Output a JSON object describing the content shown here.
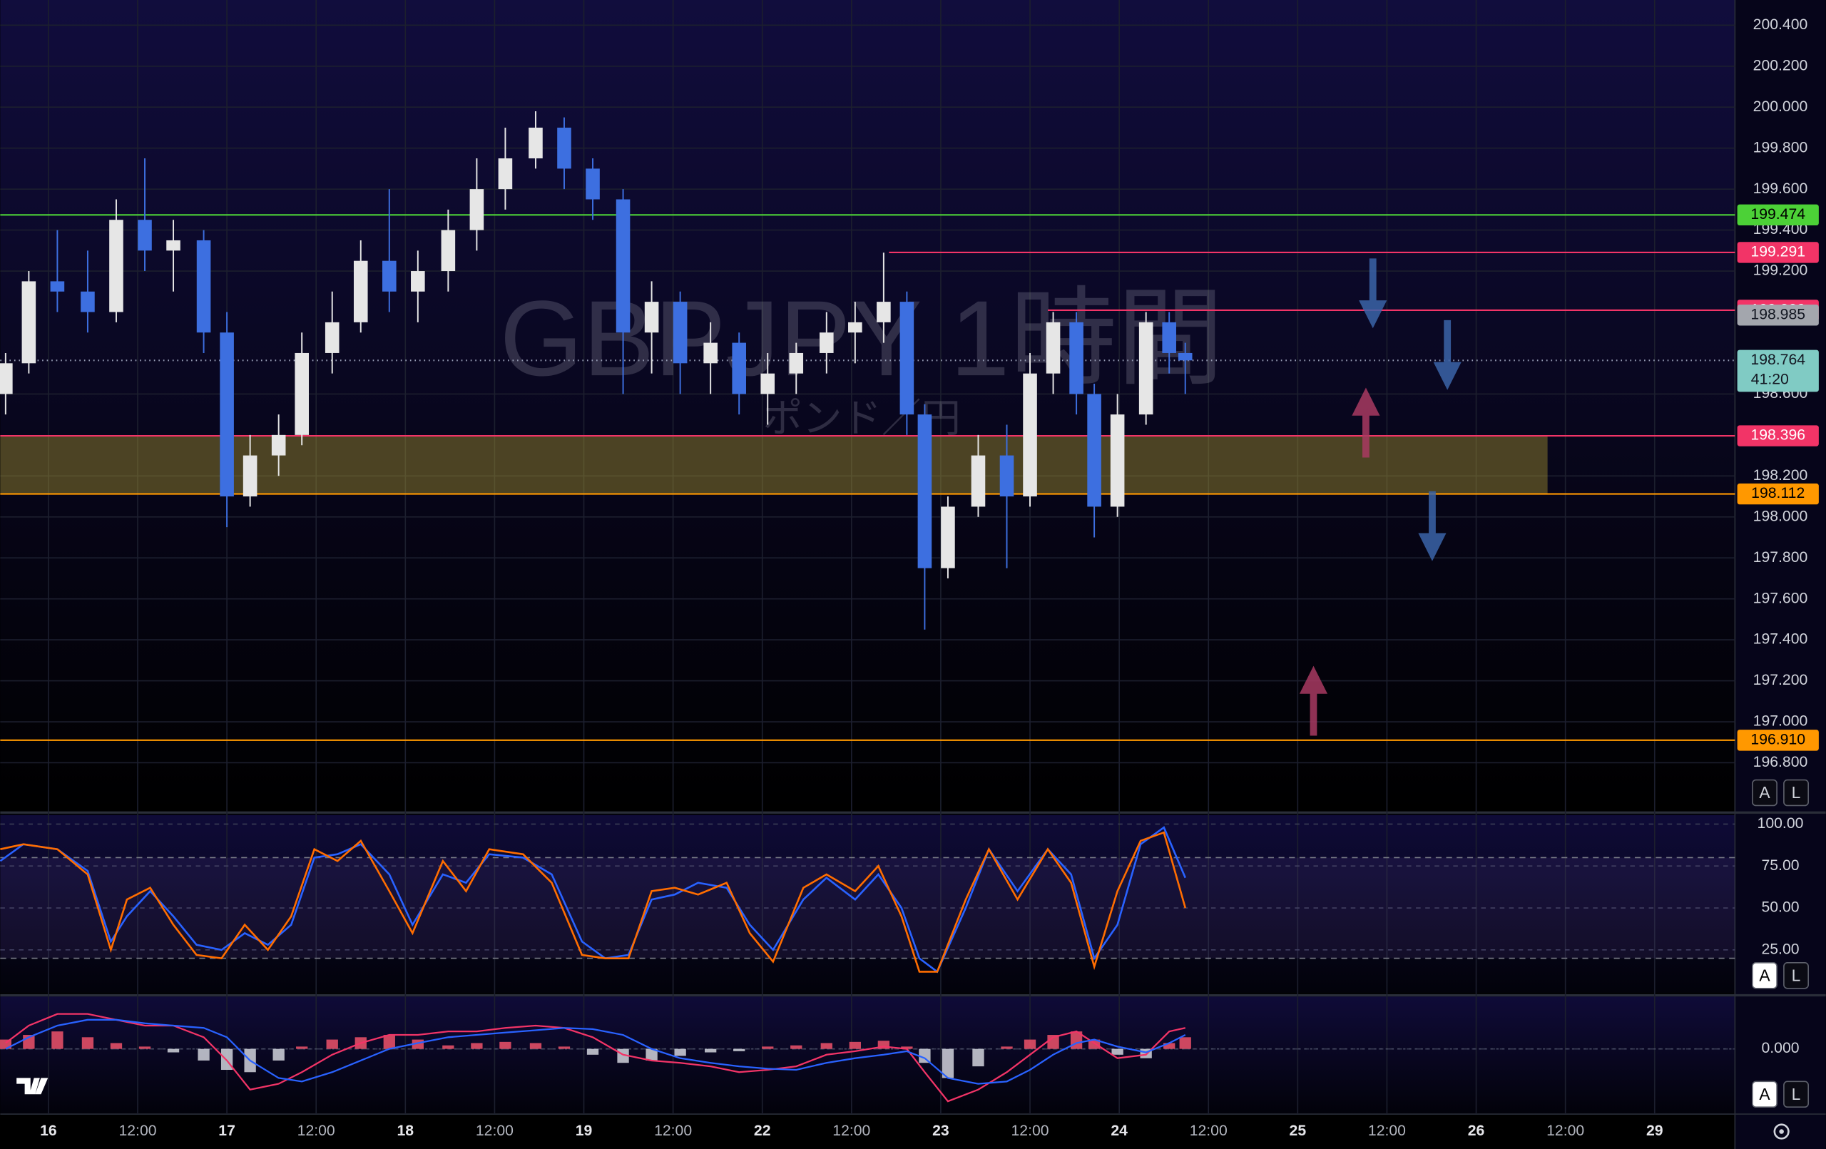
{
  "chart_data": [
    {
      "type": "candlestick",
      "title": "GBPJPY 1時間",
      "subtitle": "ポンド／円",
      "xlim": [
        -0.27,
        9.45
      ],
      "ylim": [
        196.574,
        200.523
      ],
      "xticks": [
        {
          "value": 0,
          "label": "16"
        },
        {
          "value": 0.5,
          "label": "12:00"
        },
        {
          "value": 1,
          "label": "17"
        },
        {
          "value": 1.5,
          "label": "12:00"
        },
        {
          "value": 2,
          "label": "18"
        },
        {
          "value": 2.5,
          "label": "12:00"
        },
        {
          "value": 3,
          "label": "19"
        },
        {
          "value": 3.5,
          "label": "12:00"
        },
        {
          "value": 4,
          "label": "22"
        },
        {
          "value": 4.5,
          "label": "12:00"
        },
        {
          "value": 5,
          "label": "23"
        },
        {
          "value": 5.5,
          "label": "12:00"
        },
        {
          "value": 6,
          "label": "24"
        },
        {
          "value": 6.5,
          "label": "12:00"
        },
        {
          "value": 7,
          "label": "25"
        },
        {
          "value": 7.5,
          "label": "12:00"
        },
        {
          "value": 8,
          "label": "26"
        },
        {
          "value": 8.5,
          "label": "12:00"
        },
        {
          "value": 9,
          "label": "29"
        }
      ],
      "yticks": [
        {
          "value": 200.4,
          "label": "200.400"
        },
        {
          "value": 200.2,
          "label": "200.200"
        },
        {
          "value": 200.0,
          "label": "200.000"
        },
        {
          "value": 199.8,
          "label": "199.800"
        },
        {
          "value": 199.6,
          "label": "199.600"
        },
        {
          "value": 199.4,
          "label": "199.400"
        },
        {
          "value": 199.2,
          "label": "199.200"
        },
        {
          "value": 198.6,
          "label": "198.600"
        },
        {
          "value": 198.2,
          "label": "198.200"
        },
        {
          "value": 198.0,
          "label": "198.000"
        },
        {
          "value": 197.8,
          "label": "197.800"
        },
        {
          "value": 197.6,
          "label": "197.600"
        },
        {
          "value": 197.4,
          "label": "197.400"
        },
        {
          "value": 197.2,
          "label": "197.200"
        },
        {
          "value": 197.0,
          "label": "197.000"
        },
        {
          "value": 196.8,
          "label": "196.800"
        }
      ],
      "grid": true,
      "up_color": "#e6e6e6",
      "down_color": "#3d6fe0",
      "x": [
        -0.24,
        -0.11,
        0.05,
        0.22,
        0.38,
        0.54,
        0.7,
        0.87,
        1.0,
        1.13,
        1.29,
        1.42,
        1.59,
        1.75,
        1.91,
        2.07,
        2.24,
        2.4,
        2.56,
        2.73,
        2.89,
        3.05,
        3.22,
        3.38,
        3.54,
        3.71,
        3.87,
        4.03,
        4.19,
        4.36,
        4.52,
        4.68,
        4.81,
        4.91,
        5.04,
        5.21,
        5.37,
        5.5,
        5.63,
        5.76,
        5.86,
        5.99,
        6.15,
        6.28,
        6.37
      ],
      "open": [
        198.6,
        198.75,
        199.15,
        199.1,
        199.0,
        199.45,
        199.3,
        199.35,
        198.9,
        198.1,
        198.3,
        198.4,
        198.8,
        198.95,
        199.25,
        199.1,
        199.2,
        199.4,
        199.6,
        199.75,
        199.9,
        199.7,
        199.55,
        198.9,
        199.05,
        198.75,
        198.85,
        198.6,
        198.7,
        198.8,
        198.9,
        198.95,
        199.05,
        198.5,
        197.75,
        198.05,
        198.3,
        198.1,
        198.7,
        198.95,
        198.6,
        198.05,
        198.5,
        198.95,
        198.8
      ],
      "high": [
        198.8,
        199.2,
        199.4,
        199.3,
        199.55,
        199.75,
        199.45,
        199.4,
        199.0,
        198.4,
        198.5,
        198.9,
        199.1,
        199.35,
        199.6,
        199.3,
        199.5,
        199.75,
        199.9,
        199.98,
        199.95,
        199.75,
        199.6,
        199.15,
        199.1,
        198.95,
        198.9,
        198.8,
        198.85,
        199.0,
        199.05,
        199.29,
        199.1,
        198.55,
        198.1,
        198.4,
        198.45,
        198.8,
        199.0,
        199.0,
        198.65,
        198.6,
        199.0,
        199.0,
        198.85
      ],
      "low": [
        198.5,
        198.7,
        199.0,
        198.9,
        198.95,
        199.2,
        199.1,
        198.8,
        197.95,
        198.05,
        198.2,
        198.35,
        198.7,
        198.9,
        199.0,
        198.95,
        199.1,
        199.3,
        199.5,
        199.7,
        199.6,
        199.45,
        198.6,
        198.7,
        198.6,
        198.6,
        198.5,
        198.45,
        198.6,
        198.7,
        198.75,
        198.85,
        198.4,
        197.45,
        197.7,
        198.0,
        197.75,
        198.05,
        198.6,
        198.5,
        197.9,
        198.0,
        198.45,
        198.7,
        198.6
      ],
      "close": [
        198.75,
        199.15,
        199.1,
        199.0,
        199.45,
        199.3,
        199.35,
        198.9,
        198.1,
        198.3,
        198.4,
        198.8,
        198.95,
        199.25,
        199.1,
        199.2,
        199.4,
        199.6,
        199.75,
        199.9,
        199.7,
        199.55,
        198.9,
        199.05,
        198.75,
        198.85,
        198.6,
        198.7,
        198.8,
        198.9,
        198.95,
        199.05,
        198.5,
        197.75,
        198.05,
        198.3,
        198.1,
        198.7,
        198.95,
        198.6,
        198.05,
        198.5,
        198.95,
        198.8,
        198.764
      ],
      "zone": {
        "from": 198.112,
        "to": 198.396,
        "x_end": 8.4,
        "color": "#b3a133"
      },
      "levels": [
        {
          "value": 199.474,
          "label": "199.474",
          "color": "#4cd137",
          "text_color": "#000000",
          "line": "solid"
        },
        {
          "value": 199.291,
          "label": "199.291",
          "color": "#f23467",
          "text_color": "#ffffff",
          "line": "solid",
          "x_start": 4.71
        },
        {
          "value": 199.009,
          "label": "199.009",
          "color": "#f23467",
          "text_color": "#ffffff",
          "line": "solid",
          "x_start": 5.6
        },
        {
          "value": 198.985,
          "label": "198.985",
          "color": "#a3a6ad",
          "text_color": "#131722",
          "line": "none"
        },
        {
          "value": 198.764,
          "label": "198.764",
          "color": "#80cbc4",
          "text_color": "#131722",
          "line": "dotted",
          "countdown": "41:20"
        },
        {
          "value": 198.396,
          "label": "198.396",
          "color": "#f23467",
          "text_color": "#ffffff",
          "line": "solid"
        },
        {
          "value": 198.112,
          "label": "198.112",
          "color": "#ff9800",
          "text_color": "#000000",
          "line": "solid"
        },
        {
          "value": 196.91,
          "label": "196.910",
          "color": "#ff9800",
          "text_color": "#000000",
          "line": "solid"
        }
      ]
    },
    {
      "type": "line",
      "xlim": [
        -0.27,
        9.45
      ],
      "ylim": [
        0,
        102
      ],
      "yticks": [
        {
          "value": 100,
          "label": "100.00"
        },
        {
          "value": 75,
          "label": "75.00"
        },
        {
          "value": 50,
          "label": "50.00"
        },
        {
          "value": 25,
          "label": "25.00"
        }
      ],
      "band": [
        20,
        80
      ],
      "band_color": "#7e57c2",
      "x": [
        -0.27,
        -0.14,
        0.05,
        0.22,
        0.35,
        0.44,
        0.57,
        0.7,
        0.83,
        0.97,
        1.1,
        1.23,
        1.36,
        1.49,
        1.62,
        1.75,
        1.91,
        2.04,
        2.21,
        2.34,
        2.47,
        2.66,
        2.82,
        2.99,
        3.12,
        3.25,
        3.38,
        3.51,
        3.64,
        3.8,
        3.93,
        4.06,
        4.23,
        4.36,
        4.52,
        4.65,
        4.78,
        4.88,
        4.98,
        5.14,
        5.27,
        5.43,
        5.6,
        5.73,
        5.86,
        5.99,
        6.12,
        6.25,
        6.37
      ],
      "series": [
        {
          "color": "#2962ff",
          "values": [
            78,
            88,
            85,
            72,
            30,
            45,
            60,
            45,
            28,
            25,
            35,
            28,
            40,
            80,
            82,
            88,
            70,
            40,
            70,
            65,
            82,
            80,
            70,
            30,
            20,
            22,
            55,
            58,
            65,
            62,
            40,
            25,
            55,
            68,
            55,
            70,
            50,
            20,
            12,
            50,
            85,
            60,
            85,
            70,
            20,
            40,
            88,
            98,
            68
          ]
        },
        {
          "color": "#ff6d00",
          "values": [
            85,
            88,
            85,
            70,
            25,
            55,
            62,
            40,
            22,
            20,
            40,
            25,
            45,
            85,
            78,
            90,
            60,
            35,
            78,
            60,
            85,
            82,
            65,
            22,
            20,
            20,
            60,
            62,
            58,
            65,
            35,
            18,
            62,
            70,
            60,
            75,
            45,
            12,
            12,
            55,
            85,
            55,
            85,
            65,
            15,
            60,
            90,
            95,
            50
          ]
        }
      ]
    },
    {
      "type": "combo",
      "xlim": [
        -0.27,
        9.45
      ],
      "ylim": [
        -0.54,
        0.44
      ],
      "yticks": [
        {
          "value": 0,
          "label": "0.000"
        }
      ],
      "positive_color": "#f0526b",
      "negative_color": "#d1d4dc",
      "x": [
        -0.24,
        -0.11,
        0.05,
        0.22,
        0.38,
        0.54,
        0.7,
        0.87,
        1.0,
        1.13,
        1.29,
        1.42,
        1.59,
        1.75,
        1.91,
        2.07,
        2.24,
        2.4,
        2.56,
        2.73,
        2.89,
        3.05,
        3.22,
        3.38,
        3.54,
        3.71,
        3.87,
        4.03,
        4.19,
        4.36,
        4.52,
        4.68,
        4.81,
        4.91,
        5.04,
        5.21,
        5.37,
        5.5,
        5.63,
        5.76,
        5.86,
        5.99,
        6.15,
        6.28,
        6.37
      ],
      "histogram": [
        0.08,
        0.12,
        0.15,
        0.1,
        0.05,
        0.02,
        -0.03,
        -0.1,
        -0.18,
        -0.2,
        -0.1,
        0.02,
        0.08,
        0.1,
        0.12,
        0.08,
        0.03,
        0.05,
        0.06,
        0.05,
        0.02,
        -0.05,
        -0.12,
        -0.1,
        -0.06,
        -0.03,
        -0.02,
        0.02,
        0.03,
        0.05,
        0.06,
        0.07,
        0.02,
        -0.12,
        -0.25,
        -0.15,
        0.02,
        0.08,
        0.12,
        0.15,
        0.08,
        -0.05,
        -0.08,
        0.05,
        0.1
      ],
      "series": [
        {
          "color": "#f23467",
          "values": [
            0.05,
            0.2,
            0.3,
            0.3,
            0.25,
            0.2,
            0.2,
            0.1,
            -0.1,
            -0.35,
            -0.3,
            -0.2,
            -0.05,
            0.05,
            0.12,
            0.12,
            0.15,
            0.15,
            0.18,
            0.2,
            0.18,
            0.1,
            -0.05,
            -0.1,
            -0.12,
            -0.15,
            -0.2,
            -0.18,
            -0.15,
            -0.05,
            -0.02,
            0.02,
            0.0,
            -0.2,
            -0.45,
            -0.35,
            -0.2,
            -0.05,
            0.1,
            0.15,
            0.05,
            -0.08,
            -0.05,
            0.15,
            0.18
          ]
        },
        {
          "color": "#2962ff",
          "values": [
            0.0,
            0.1,
            0.2,
            0.25,
            0.25,
            0.22,
            0.2,
            0.18,
            0.1,
            -0.1,
            -0.25,
            -0.28,
            -0.2,
            -0.1,
            0.0,
            0.05,
            0.1,
            0.12,
            0.14,
            0.16,
            0.18,
            0.17,
            0.12,
            0.0,
            -0.08,
            -0.12,
            -0.15,
            -0.17,
            -0.18,
            -0.12,
            -0.08,
            -0.05,
            -0.02,
            -0.08,
            -0.25,
            -0.3,
            -0.28,
            -0.18,
            -0.05,
            0.05,
            0.08,
            0.02,
            -0.03,
            0.05,
            0.12
          ]
        }
      ]
    }
  ],
  "ui": {
    "scale_buttons": [
      [
        "A",
        "L"
      ],
      [
        "A",
        "L"
      ],
      [
        "A",
        "L"
      ]
    ]
  }
}
